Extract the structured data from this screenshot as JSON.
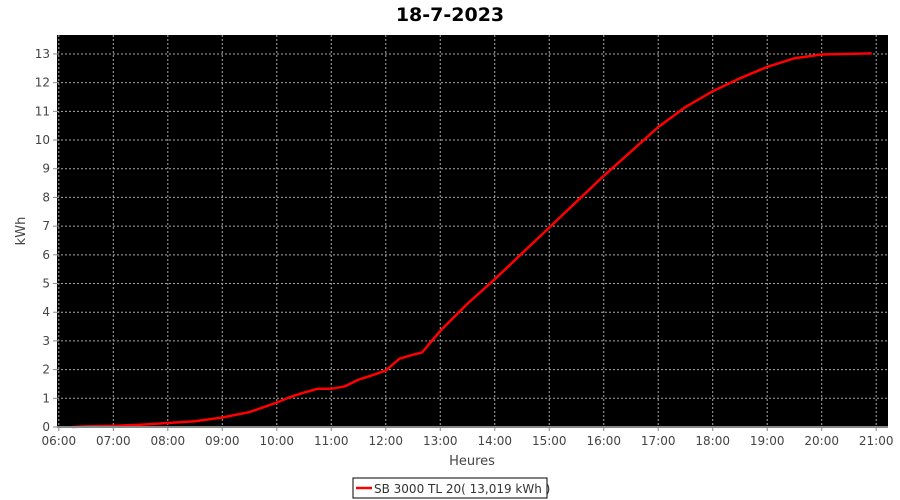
{
  "chart_data": {
    "type": "line",
    "title": "18-7-2023",
    "xlabel": "Heures",
    "ylabel": "kWh",
    "xlim": [
      "05:58",
      "21:13"
    ],
    "ylim": [
      0,
      13.66
    ],
    "x_ticks": [
      "06:00",
      "07:00",
      "08:00",
      "09:00",
      "10:00",
      "11:00",
      "12:00",
      "13:00",
      "14:00",
      "15:00",
      "16:00",
      "17:00",
      "18:00",
      "19:00",
      "20:00",
      "21:00"
    ],
    "y_ticks": [
      0,
      1,
      2,
      3,
      4,
      5,
      6,
      7,
      8,
      9,
      10,
      11,
      12,
      13
    ],
    "grid": true,
    "background": "#000000",
    "legend_position": "bottom",
    "series": [
      {
        "name": "SB 3000 TL 20( 13,019 kWh )",
        "color": "#ff0000",
        "x": [
          "06:15",
          "06:30",
          "07:00",
          "07:30",
          "08:00",
          "08:30",
          "09:00",
          "09:30",
          "10:00",
          "10:15",
          "10:30",
          "10:45",
          "11:00",
          "11:15",
          "11:30",
          "11:45",
          "12:00",
          "12:15",
          "12:30",
          "12:40",
          "13:00",
          "13:30",
          "14:00",
          "14:30",
          "15:00",
          "15:30",
          "16:00",
          "16:30",
          "17:00",
          "17:30",
          "18:00",
          "18:30",
          "19:00",
          "19:30",
          "20:00",
          "20:30",
          "20:55"
        ],
        "y": [
          0,
          0.02,
          0.04,
          0.08,
          0.14,
          0.2,
          0.33,
          0.52,
          0.85,
          1.05,
          1.2,
          1.33,
          1.33,
          1.42,
          1.65,
          1.8,
          1.97,
          2.38,
          2.52,
          2.6,
          3.35,
          4.3,
          5.15,
          6.05,
          6.95,
          7.85,
          8.75,
          9.6,
          10.45,
          11.15,
          11.7,
          12.15,
          12.55,
          12.85,
          12.98,
          13.0,
          13.02
        ]
      }
    ]
  }
}
